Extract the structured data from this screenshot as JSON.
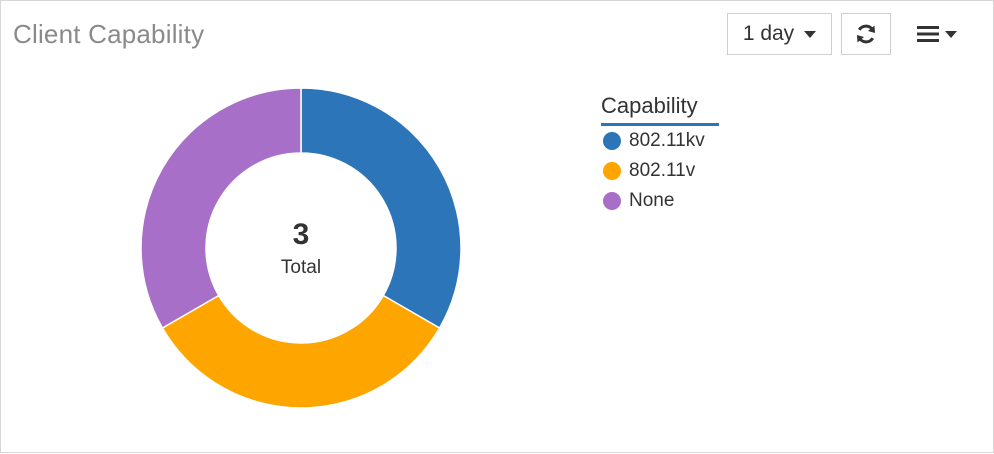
{
  "header": {
    "title": "Client Capability",
    "range_label": "1 day"
  },
  "icons": {
    "refresh": "refresh-icon",
    "menu": "hamburger-menu-icon"
  },
  "chart_data": {
    "type": "pie",
    "variant": "donut",
    "center_value": "3",
    "center_label": "Total",
    "legend_title": "Capability",
    "legend_position": "right",
    "categories": [
      "802.11kv",
      "802.11v",
      "None"
    ],
    "values": [
      1,
      1,
      1
    ],
    "colors": [
      "#2b75b8",
      "#ffa500",
      "#a86fc8"
    ]
  }
}
